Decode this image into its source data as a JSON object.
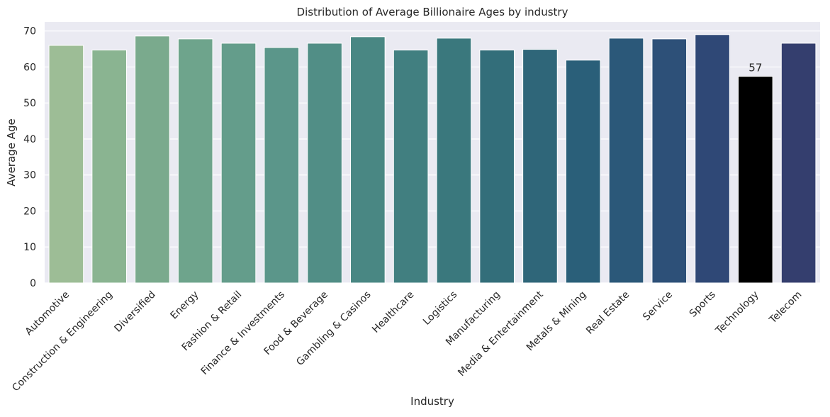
{
  "chart_data": {
    "type": "bar",
    "title": "Distribution of Average Billionaire Ages by industry",
    "xlabel": "Industry",
    "ylabel": "Average Age",
    "ylim": [
      0,
      72.5
    ],
    "yticks": [
      0,
      10,
      20,
      30,
      40,
      50,
      60,
      70
    ],
    "grid": true,
    "categories": [
      "Automotive",
      "Construction & Engineering",
      "Diversified",
      "Energy",
      "Fashion & Retail",
      "Finance & Investments",
      "Food & Beverage",
      "Gambling & Casinos",
      "Healthcare",
      "Logistics",
      "Manufacturing",
      "Media & Entertainment",
      "Metals & Mining",
      "Real Estate",
      "Service",
      "Sports",
      "Technology",
      "Telecom"
    ],
    "values": [
      66.0,
      64.7,
      68.6,
      67.8,
      66.6,
      65.4,
      66.6,
      68.4,
      64.7,
      68.0,
      64.7,
      64.9,
      61.9,
      68.0,
      67.8,
      69.0,
      57.4,
      66.6
    ],
    "colors": [
      "#9dbd96",
      "#8ab491",
      "#7aaa8d",
      "#6ea48c",
      "#649d8b",
      "#5b968a",
      "#518e86",
      "#498783",
      "#417f80",
      "#3a787d",
      "#336e7a",
      "#2f6679",
      "#2a5f79",
      "#2b5879",
      "#2d5078",
      "#2f4876",
      "#000000",
      "#343e6e"
    ],
    "annotations": [
      {
        "category": "Technology",
        "text": "57"
      }
    ],
    "background": "#eaeaf2"
  }
}
